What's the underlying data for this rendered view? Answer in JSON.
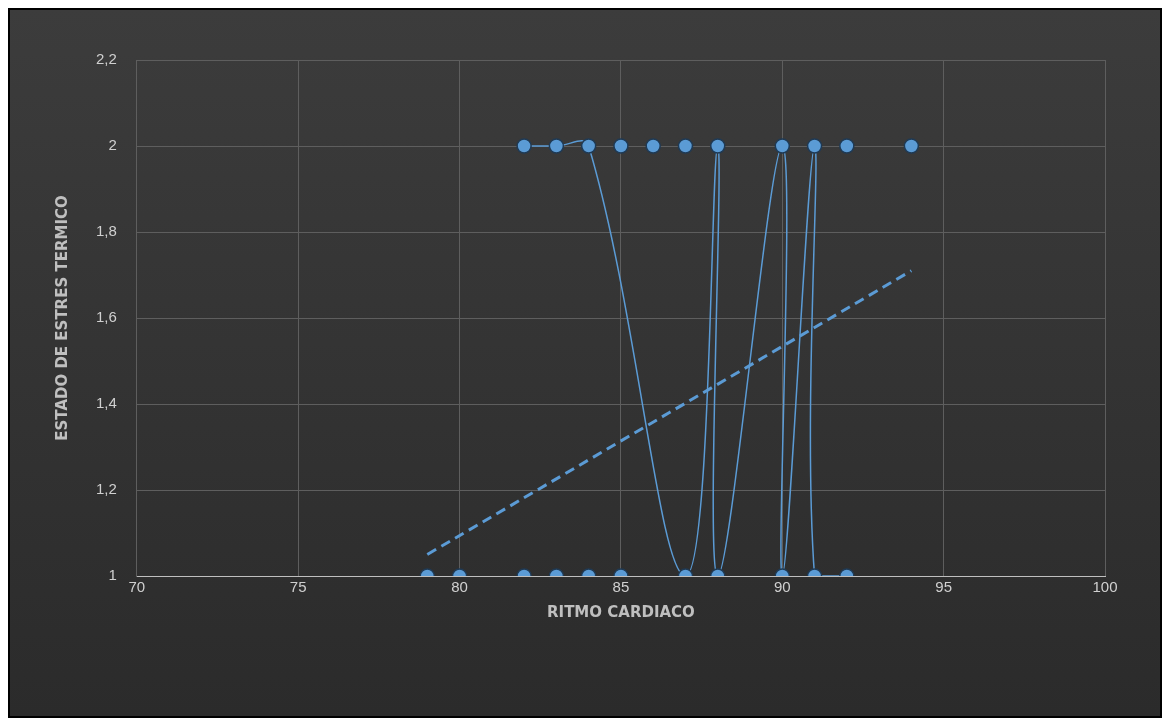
{
  "chart_data": {
    "type": "scatter",
    "xlabel": "RITMO CARDIACO",
    "ylabel": "ESTADO DE ESTRES TERMICO",
    "xlim": [
      70,
      100
    ],
    "xticks": [
      70,
      75,
      80,
      85,
      90,
      95,
      100
    ],
    "ylim": [
      1,
      2.2
    ],
    "yticks": [
      {
        "value": 1,
        "label": "1"
      },
      {
        "value": 1.2,
        "label": "1,2"
      },
      {
        "value": 1.4,
        "label": "1,4"
      },
      {
        "value": 1.6,
        "label": "1,6"
      },
      {
        "value": 1.8,
        "label": "1,8"
      },
      {
        "value": 2,
        "label": "2"
      },
      {
        "value": 2.2,
        "label": "2,2"
      }
    ],
    "grid": true,
    "marker": "circle",
    "series": [
      {
        "type": "line",
        "color": "#5b9bd5",
        "x": [
          82,
          83,
          84,
          87,
          88,
          88,
          90,
          90,
          91,
          91,
          92
        ],
        "values": [
          2,
          2,
          2,
          1,
          2,
          1,
          2,
          1,
          2,
          1,
          1
        ]
      },
      {
        "type": "scatter",
        "color": "#5b9bd5",
        "x": [
          79,
          80,
          82,
          83,
          84,
          85,
          85,
          86,
          87,
          92,
          94
        ],
        "values": [
          1,
          1,
          1,
          1,
          1,
          1,
          2,
          2,
          2,
          2,
          2
        ]
      },
      {
        "type": "line",
        "color": "#5b9bd5",
        "marker": "none",
        "line_style": "dashed",
        "x": [
          79,
          94
        ],
        "values": [
          1.05,
          1.71
        ]
      }
    ]
  }
}
